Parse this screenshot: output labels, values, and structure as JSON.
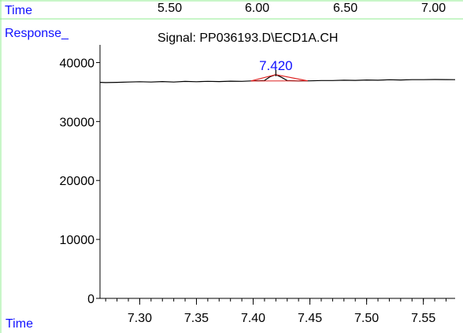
{
  "header": {
    "time_label": "Time",
    "response_label": "Response_",
    "overview_time_ticks": [
      "5.50",
      "6.00",
      "6.50",
      "7.00"
    ]
  },
  "footer": {
    "time_label": "Time"
  },
  "colors": {
    "label_blue": "#1010ff",
    "frame_green": "#90ee90",
    "signal": "#000000",
    "peak_marker": "#dd2222",
    "axis": "#000000"
  },
  "chart_data": {
    "type": "line",
    "title": "Signal: PP036193.D\\ECD1A.CH",
    "xlabel": "Time",
    "ylabel": "Response_",
    "xlim": [
      7.265,
      7.578
    ],
    "ylim": [
      0,
      43000
    ],
    "x_ticks": [
      7.3,
      7.35,
      7.4,
      7.45,
      7.5,
      7.55
    ],
    "x_tick_labels": [
      "7.30",
      "7.35",
      "7.40",
      "7.45",
      "7.50",
      "7.55"
    ],
    "x_minor_step": 0.01,
    "y_ticks": [
      0,
      10000,
      20000,
      30000,
      40000
    ],
    "y_tick_labels": [
      "0",
      "10000",
      "20000",
      "30000",
      "40000"
    ],
    "grid": false,
    "series": [
      {
        "x": [
          7.265,
          7.27,
          7.28,
          7.29,
          7.3,
          7.31,
          7.32,
          7.33,
          7.34,
          7.35,
          7.36,
          7.37,
          7.38,
          7.39,
          7.4,
          7.41,
          7.415,
          7.42,
          7.425,
          7.43,
          7.44,
          7.45,
          7.46,
          7.47,
          7.48,
          7.49,
          7.5,
          7.51,
          7.52,
          7.53,
          7.54,
          7.55,
          7.56,
          7.57,
          7.578
        ],
        "y": [
          36650,
          36600,
          36650,
          36700,
          36750,
          36700,
          36780,
          36700,
          36800,
          36750,
          36820,
          36780,
          36850,
          36820,
          36900,
          36950,
          37600,
          37950,
          37500,
          36950,
          36880,
          36900,
          36950,
          36950,
          37000,
          36980,
          37050,
          37000,
          37080,
          37050,
          37100,
          37100,
          37120,
          37110,
          37100
        ]
      }
    ],
    "peaks": [
      {
        "label": "7.420",
        "apex_x": 7.42,
        "apex_y": 37950,
        "baseline_start": [
          7.398,
          36880
        ],
        "baseline_end": [
          7.448,
          36900
        ]
      }
    ]
  }
}
